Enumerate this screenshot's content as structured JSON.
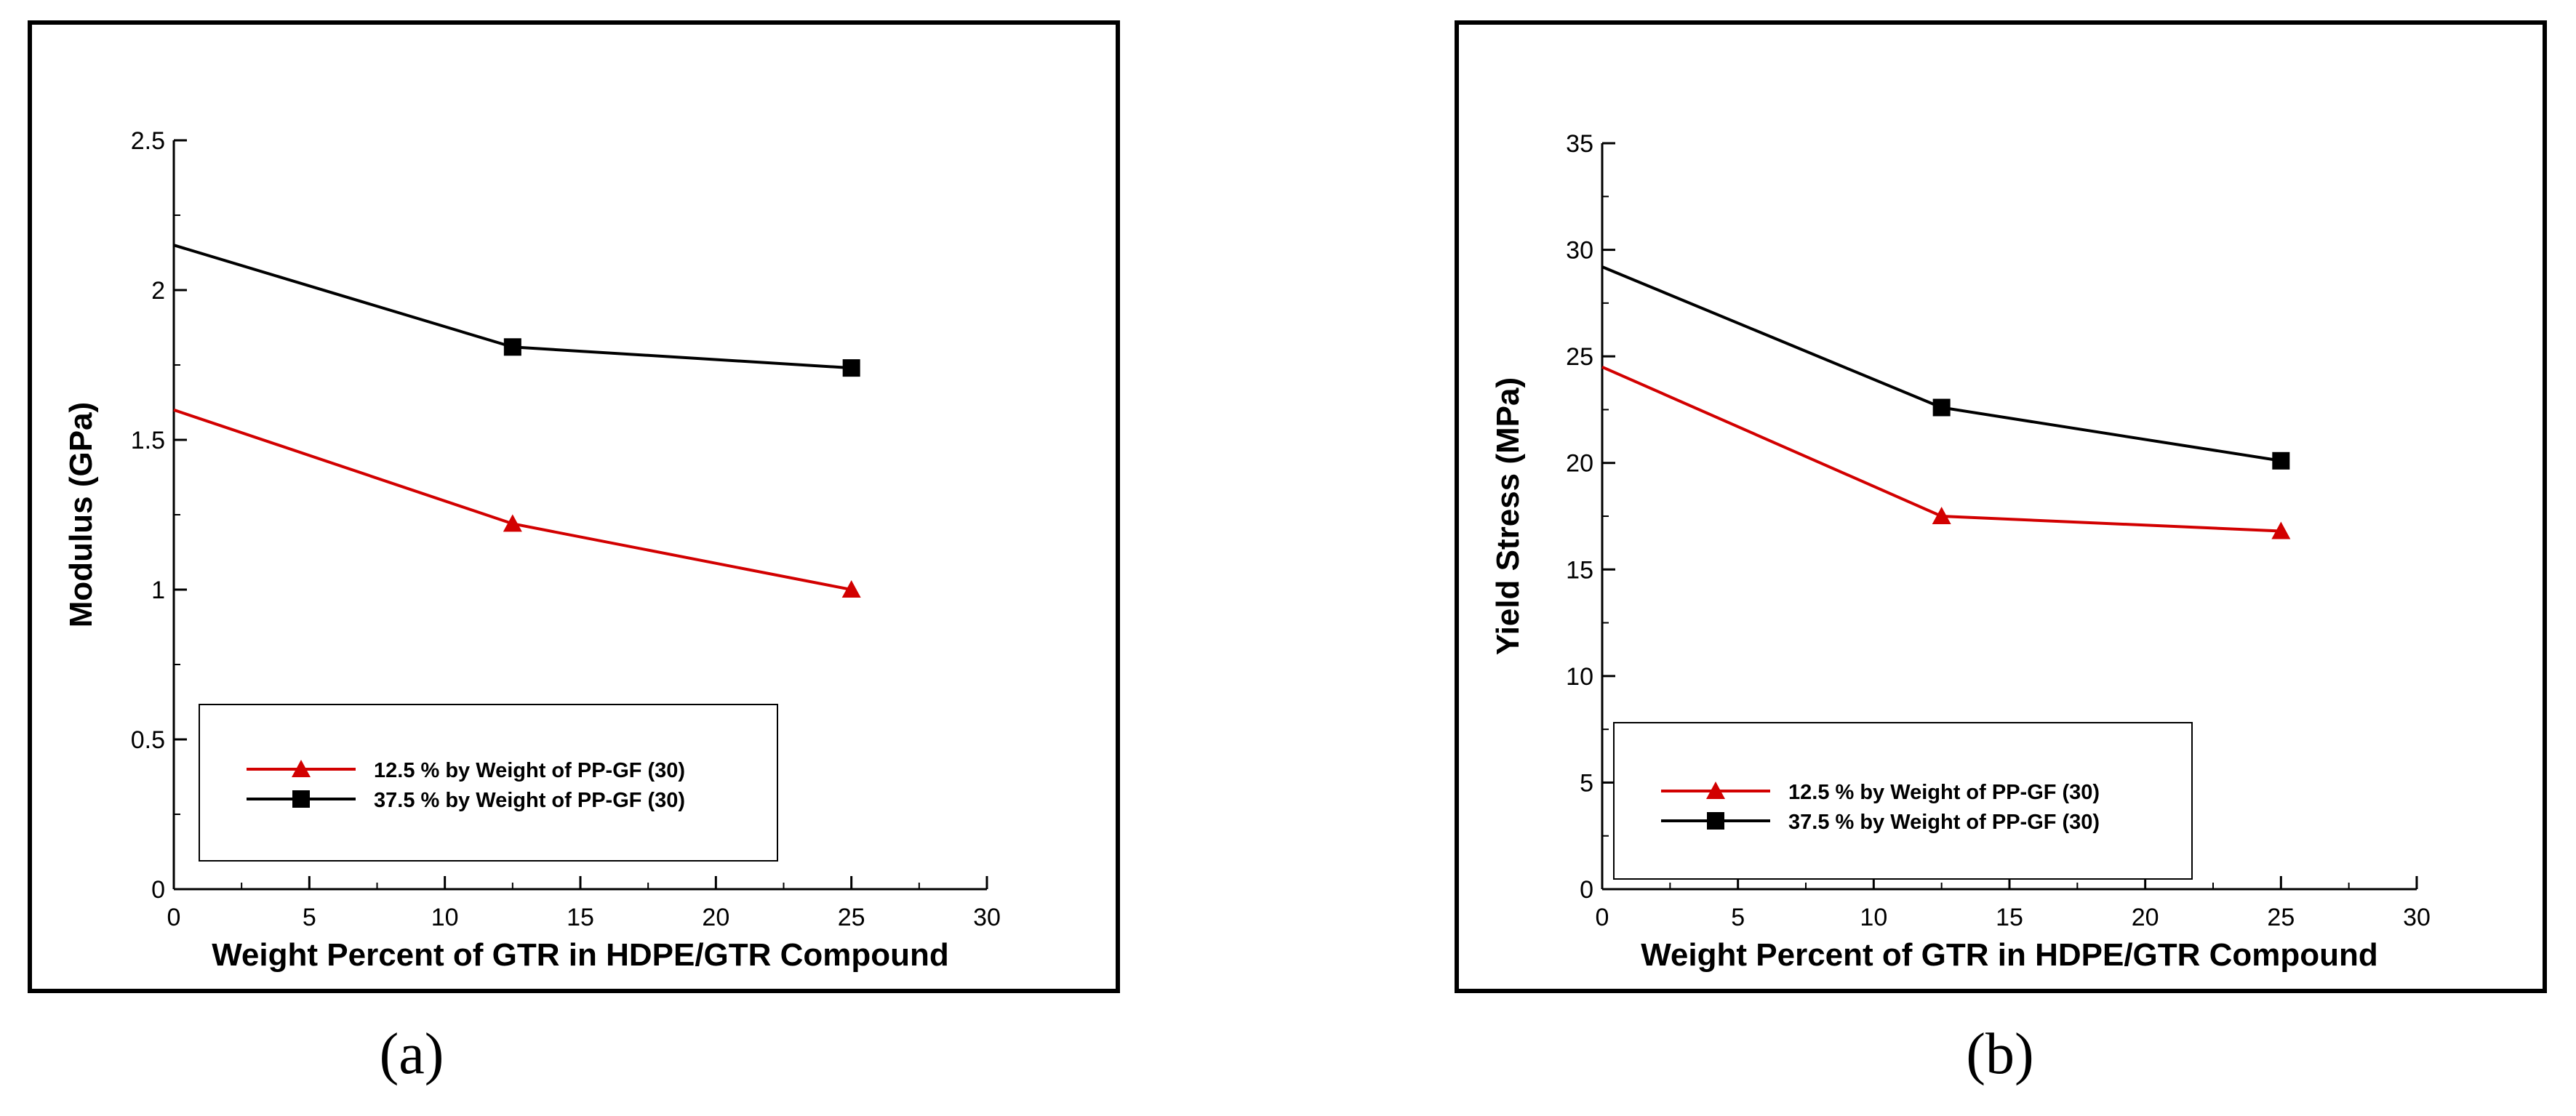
{
  "figure": {
    "captions": [
      "(a)",
      "(b)"
    ]
  },
  "colors": {
    "series_red": "#d20000",
    "series_black": "#000000"
  },
  "chart_data": [
    {
      "type": "line",
      "panel": "a",
      "title": "",
      "xlabel": "Weight Percent of GTR in HDPE/GTR Compound",
      "ylabel": "Modulus (GPa)",
      "xlim": [
        0,
        30
      ],
      "ylim": [
        0,
        2.5
      ],
      "x_ticks": [
        0,
        5,
        10,
        15,
        20,
        25,
        30
      ],
      "x_tick_labels": [
        "0",
        "5",
        "10",
        "15",
        "20",
        "25",
        "30"
      ],
      "y_ticks": [
        0,
        0.5,
        1,
        1.5,
        2,
        2.5
      ],
      "y_tick_labels": [
        "0",
        "0.5",
        "1",
        "1.5",
        "2",
        "2.5"
      ],
      "grid": false,
      "legend_position": "bottom-left",
      "series": [
        {
          "name": "12.5 % by Weight of PP-GF (30)",
          "marker": "triangle",
          "color": "#d20000",
          "x": [
            0,
            12.5,
            25
          ],
          "y": [
            1.6,
            1.22,
            1.0
          ]
        },
        {
          "name": "37.5 % by Weight of PP-GF (30)",
          "marker": "square",
          "color": "#000000",
          "x": [
            0,
            12.5,
            25
          ],
          "y": [
            2.15,
            1.81,
            1.74
          ]
        }
      ]
    },
    {
      "type": "line",
      "panel": "b",
      "title": "",
      "xlabel": "Weight Percent of GTR in HDPE/GTR Compound",
      "ylabel": "Yield Stress (MPa)",
      "xlim": [
        0,
        30
      ],
      "ylim": [
        0,
        35
      ],
      "x_ticks": [
        0,
        5,
        10,
        15,
        20,
        25,
        30
      ],
      "x_tick_labels": [
        "0",
        "5",
        "10",
        "15",
        "20",
        "25",
        "30"
      ],
      "y_ticks": [
        0,
        5,
        10,
        15,
        20,
        25,
        30,
        35
      ],
      "y_tick_labels": [
        "0",
        "5",
        "10",
        "15",
        "20",
        "25",
        "30",
        "35"
      ],
      "grid": false,
      "legend_position": "bottom-left",
      "series": [
        {
          "name": "12.5 % by Weight of PP-GF (30)",
          "marker": "triangle",
          "color": "#d20000",
          "x": [
            0,
            12.5,
            25
          ],
          "y": [
            24.5,
            17.5,
            16.8
          ]
        },
        {
          "name": "37.5 % by Weight of PP-GF (30)",
          "marker": "square",
          "color": "#000000",
          "x": [
            0,
            12.5,
            25
          ],
          "y": [
            29.2,
            22.6,
            20.1
          ]
        }
      ]
    }
  ]
}
